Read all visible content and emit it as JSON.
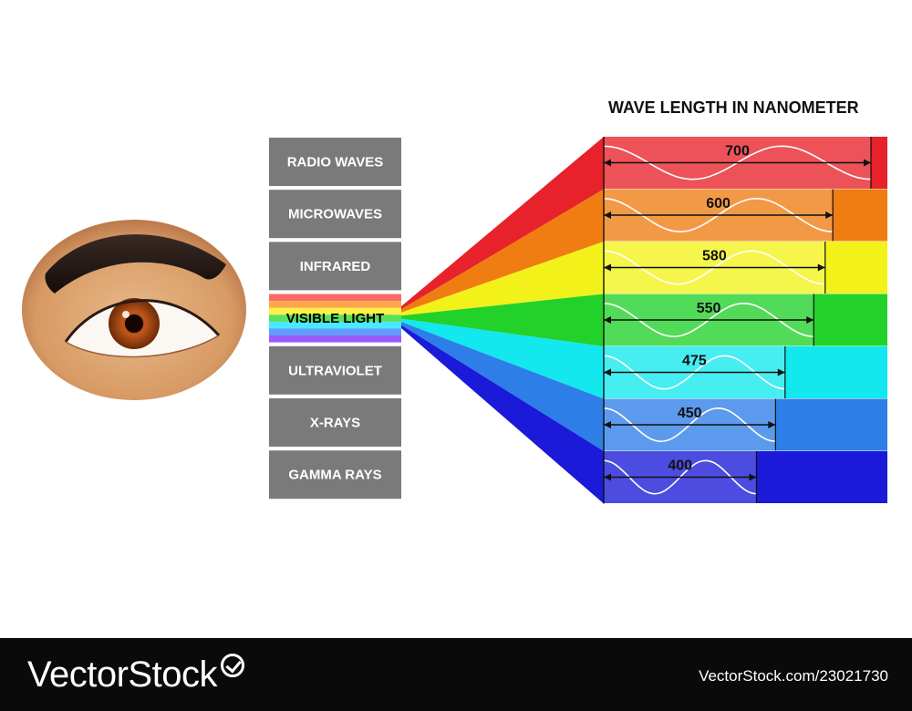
{
  "chart_title": "WAVE LENGTH IN NANOMETER",
  "spectrum_bands": [
    {
      "label": "RADIO WAVES"
    },
    {
      "label": "MICROWAVES"
    },
    {
      "label": "INFRARED"
    },
    {
      "label": "VISIBLE LIGHT",
      "highlighted": true
    },
    {
      "label": "ULTRAVIOLET"
    },
    {
      "label": "X-RAYS"
    },
    {
      "label": "GAMMA RAYS"
    }
  ],
  "colors": {
    "band_box": "#7a7a7a",
    "red": "#e8222a",
    "orange": "#ef7d12",
    "yellow": "#f2f21a",
    "green": "#22d12a",
    "cyan": "#12e8ee",
    "blue": "#2e7ee8",
    "violet": "#1a1ad8"
  },
  "chart_data": {
    "type": "bar",
    "unit": "nm",
    "categories": [
      "red",
      "orange",
      "yellow",
      "green",
      "cyan",
      "blue",
      "violet"
    ],
    "values": [
      700,
      600,
      580,
      550,
      475,
      450,
      400
    ]
  },
  "footer": {
    "brand": "VectorStock",
    "credit": "VectorStock.com/23021730"
  }
}
